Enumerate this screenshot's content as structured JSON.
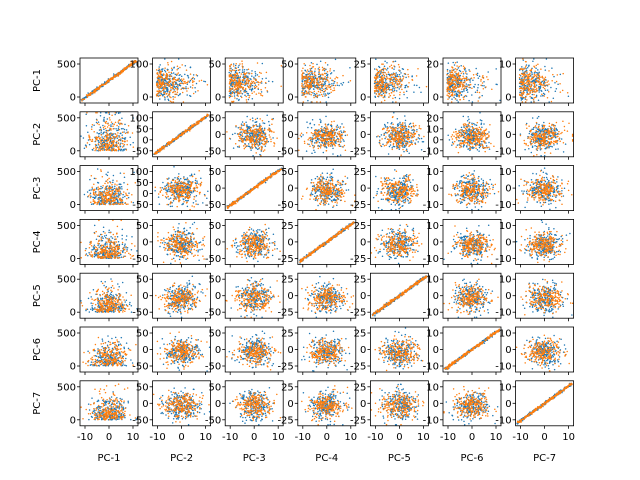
{
  "chart_data": {
    "type": "scatter",
    "title": "",
    "layout": "7x7 pairwise scatter matrix",
    "variables": [
      "PC-1",
      "PC-2",
      "PC-3",
      "PC-4",
      "PC-5",
      "PC-6",
      "PC-7"
    ],
    "row_labels": [
      "PC-1",
      "PC-2",
      "PC-3",
      "PC-4",
      "PC-5",
      "PC-6",
      "PC-7"
    ],
    "col_labels": [
      "PC-1",
      "PC-2",
      "PC-3",
      "PC-4",
      "PC-5",
      "PC-6",
      "PC-7"
    ],
    "series_colors": [
      "#1f77b4",
      "#ff7f0e"
    ],
    "row_ylim": [
      [
        -100,
        800
      ],
      [
        -50,
        120
      ],
      [
        -50,
        120
      ],
      [
        -25,
        60
      ],
      [
        -25,
        30
      ],
      [
        -15,
        30
      ],
      [
        -12,
        12
      ]
    ],
    "row_yticks": [
      [
        "0",
        "500"
      ],
      [
        "-50",
        "0",
        "50",
        "100"
      ],
      [
        "-50",
        "0",
        "50",
        "100"
      ],
      [
        "-25",
        "0",
        "25",
        "50"
      ],
      [
        "-25",
        "0",
        "25"
      ],
      [
        "-10",
        "0",
        "10",
        "20"
      ],
      [
        "-10",
        "0",
        "10"
      ]
    ],
    "col_xlim": [
      [
        -10,
        10
      ],
      [
        -10,
        10
      ],
      [
        -10,
        10
      ],
      [
        -10,
        10
      ],
      [
        -10,
        10
      ],
      [
        -10,
        10
      ],
      [
        -10,
        10
      ]
    ],
    "col_xticks": [
      [
        "-10",
        "0",
        "10"
      ],
      [
        "-10",
        "0",
        "10"
      ],
      [
        "-10",
        "0",
        "10"
      ],
      [
        "-10",
        "0",
        "10"
      ],
      [
        "-10",
        "0",
        "10"
      ],
      [
        "-10",
        "0",
        "10"
      ],
      [
        "-10",
        "0",
        "10"
      ]
    ],
    "row_yticks_per_col": [
      [
        [
          "0",
          "500"
        ],
        [
          "0",
          "100"
        ],
        [
          "0",
          "50"
        ],
        [
          "0",
          "50"
        ],
        [
          "0",
          "25"
        ],
        [
          "0",
          "20"
        ],
        [
          "0",
          "10"
        ]
      ],
      [
        [
          "0",
          "500"
        ],
        [
          "-50",
          "0",
          "50",
          "100"
        ],
        [
          "-50",
          "0",
          "50"
        ],
        [
          "-50",
          "0",
          "50"
        ],
        [
          "-25",
          "0",
          "25"
        ],
        [
          "-10",
          "0",
          "10",
          "20"
        ],
        [
          "-10",
          "0",
          "10"
        ]
      ],
      [
        [
          "0",
          "500"
        ],
        [
          "-50",
          "0",
          "50",
          "100"
        ],
        [
          "-50",
          "0",
          "50"
        ],
        [
          "-50",
          "0",
          "50"
        ],
        [
          "-25",
          "0",
          "25"
        ],
        [
          "-10",
          "0",
          "10"
        ],
        [
          "-10",
          "0",
          "10"
        ]
      ],
      [
        [
          "0",
          "500"
        ],
        [
          "-50",
          "0",
          "50"
        ],
        [
          "-50",
          "0",
          "50"
        ],
        [
          "-25",
          "0",
          "25"
        ],
        [
          "-25",
          "0",
          "25"
        ],
        [
          "-10",
          "0",
          "10"
        ],
        [
          "-10",
          "0",
          "10"
        ]
      ],
      [
        [
          "0",
          "500"
        ],
        [
          "-50",
          "0",
          "50"
        ],
        [
          "-50",
          "0",
          "50"
        ],
        [
          "-25",
          "0",
          "25"
        ],
        [
          "-25",
          "0",
          "25"
        ],
        [
          "-10",
          "0",
          "10"
        ],
        [
          "-10",
          "0",
          "10"
        ]
      ],
      [
        [
          "0",
          "500"
        ],
        [
          "-50",
          "0",
          "50"
        ],
        [
          "-50",
          "0",
          "50"
        ],
        [
          "-25",
          "0",
          "25"
        ],
        [
          "-25",
          "0",
          "25"
        ],
        [
          "-10",
          "0",
          "10"
        ],
        [
          "-10",
          "0",
          "10"
        ]
      ],
      [
        [
          "0",
          "500"
        ],
        [
          "-50",
          "0",
          "50"
        ],
        [
          "-50",
          "0",
          "50"
        ],
        [
          "-25",
          "0",
          "25"
        ],
        [
          "-25",
          "0",
          "25"
        ],
        [
          "-10",
          "0",
          "10"
        ],
        [
          "-10",
          "0",
          "10"
        ]
      ]
    ],
    "points_per_series_per_panel": 220,
    "grid": false,
    "legend": "none"
  }
}
